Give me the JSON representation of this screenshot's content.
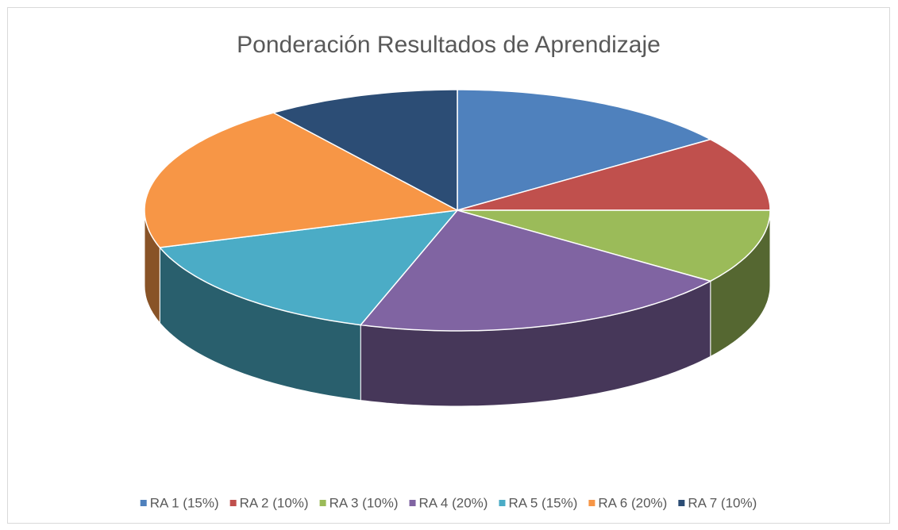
{
  "chart_data": {
    "type": "pie3d",
    "title": "Ponderación Resultados de Aprendizaje",
    "categories": [
      "RA 1 (15%)",
      "RA 2 (10%)",
      "RA 3 (10%)",
      "RA 4 (20%)",
      "RA 5 (15%)",
      "RA 6 (20%)",
      "RA 7 (10%)"
    ],
    "values": [
      15,
      10,
      10,
      20,
      15,
      20,
      10
    ],
    "colors": [
      "#4f81bd",
      "#c0504d",
      "#9bbb59",
      "#8064a2",
      "#4bacc6",
      "#f79646",
      "#2c4d75"
    ],
    "legend": "bottom"
  }
}
